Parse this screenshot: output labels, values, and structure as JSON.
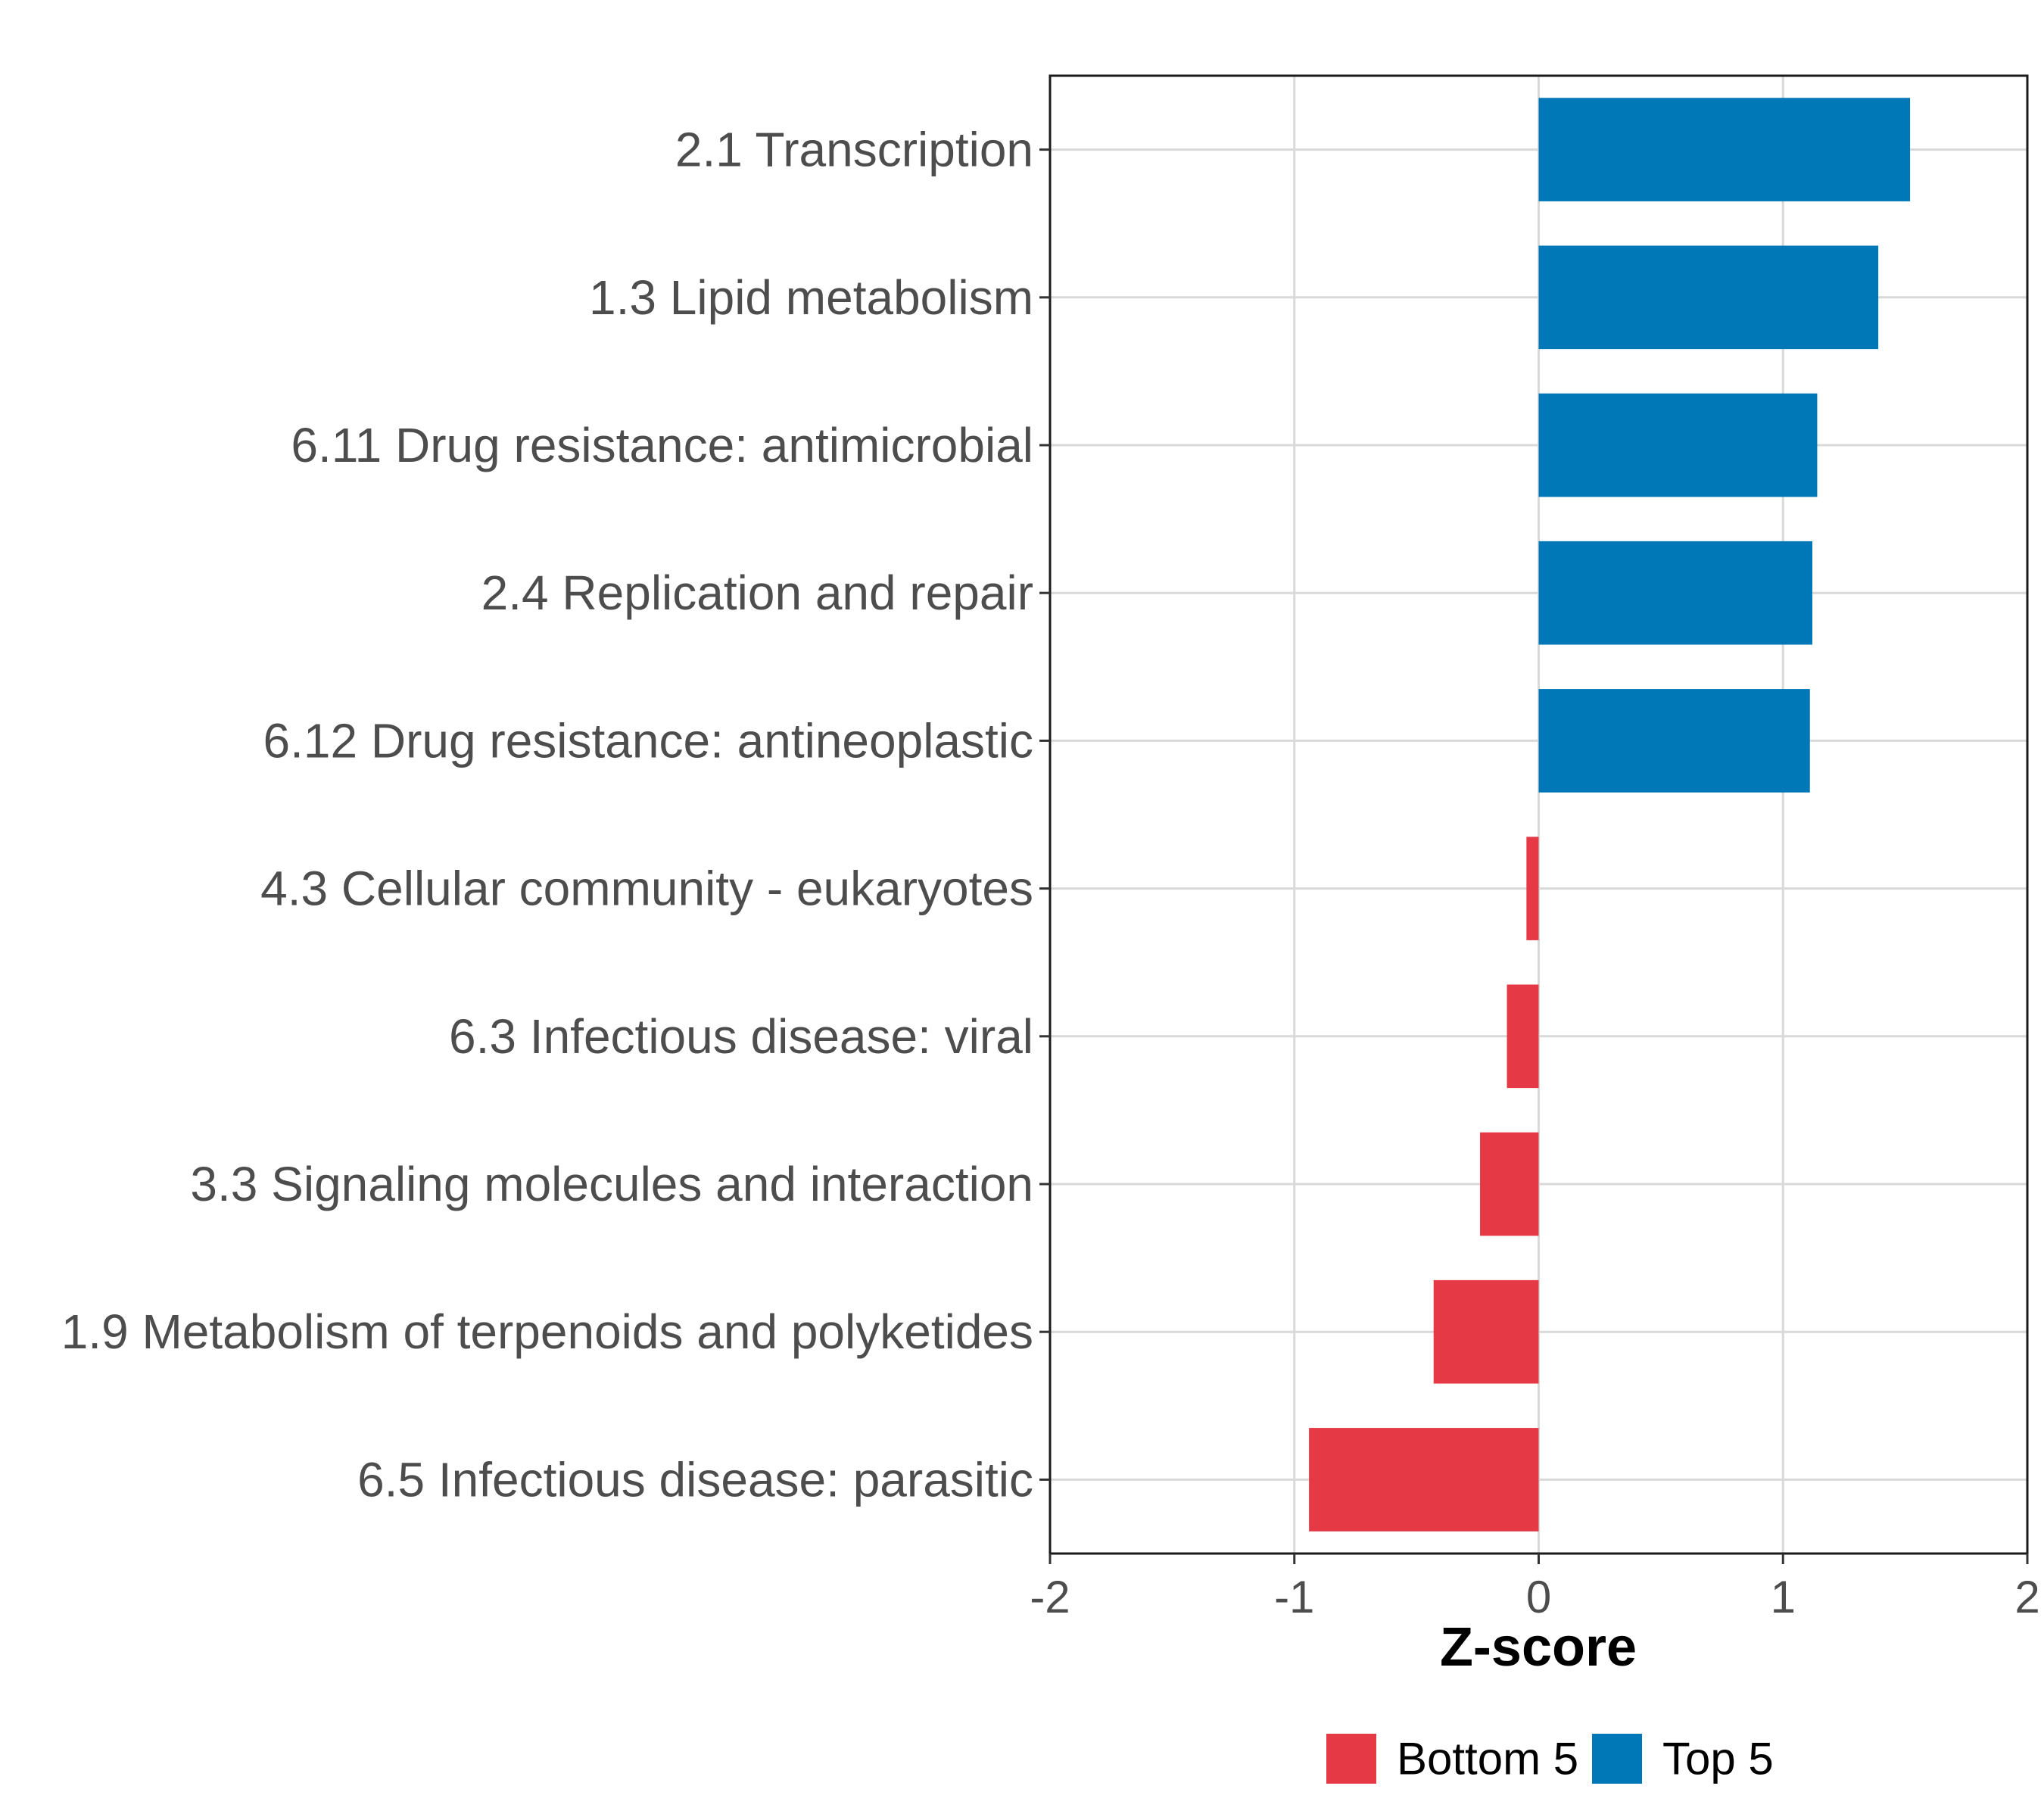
{
  "chart_data": {
    "type": "bar",
    "orientation": "horizontal",
    "title": "",
    "xlabel": "Z-score",
    "ylabel": "",
    "xlim": [
      -2,
      2
    ],
    "xticks": [
      "-2",
      "-1",
      "0",
      "1",
      "2"
    ],
    "xtick_values": [
      -2,
      -1,
      0,
      1,
      2
    ],
    "grid": true,
    "legend_position": "bottom",
    "series": [
      {
        "name": "Bottom 5",
        "color": "#e63946"
      },
      {
        "name": "Top 5",
        "color": "#0077b6"
      }
    ],
    "bars": [
      {
        "label": "2.1 Transcription",
        "value": 1.52,
        "group": "Top 5"
      },
      {
        "label": "1.3 Lipid metabolism",
        "value": 1.39,
        "group": "Top 5"
      },
      {
        "label": "6.11 Drug resistance: antimicrobial",
        "value": 1.14,
        "group": "Top 5"
      },
      {
        "label": "2.4 Replication and repair",
        "value": 1.12,
        "group": "Top 5"
      },
      {
        "label": "6.12 Drug resistance: antineoplastic",
        "value": 1.11,
        "group": "Top 5"
      },
      {
        "label": "4.3 Cellular community - eukaryotes",
        "value": -0.05,
        "group": "Bottom 5"
      },
      {
        "label": "6.3 Infectious disease: viral",
        "value": -0.13,
        "group": "Bottom 5"
      },
      {
        "label": "3.3 Signaling molecules and interaction",
        "value": -0.24,
        "group": "Bottom 5"
      },
      {
        "label": "1.9 Metabolism of terpenoids and polyketides",
        "value": -0.43,
        "group": "Bottom 5"
      },
      {
        "label": "6.5 Infectious disease: parasitic",
        "value": -0.94,
        "group": "Bottom 5"
      }
    ]
  }
}
